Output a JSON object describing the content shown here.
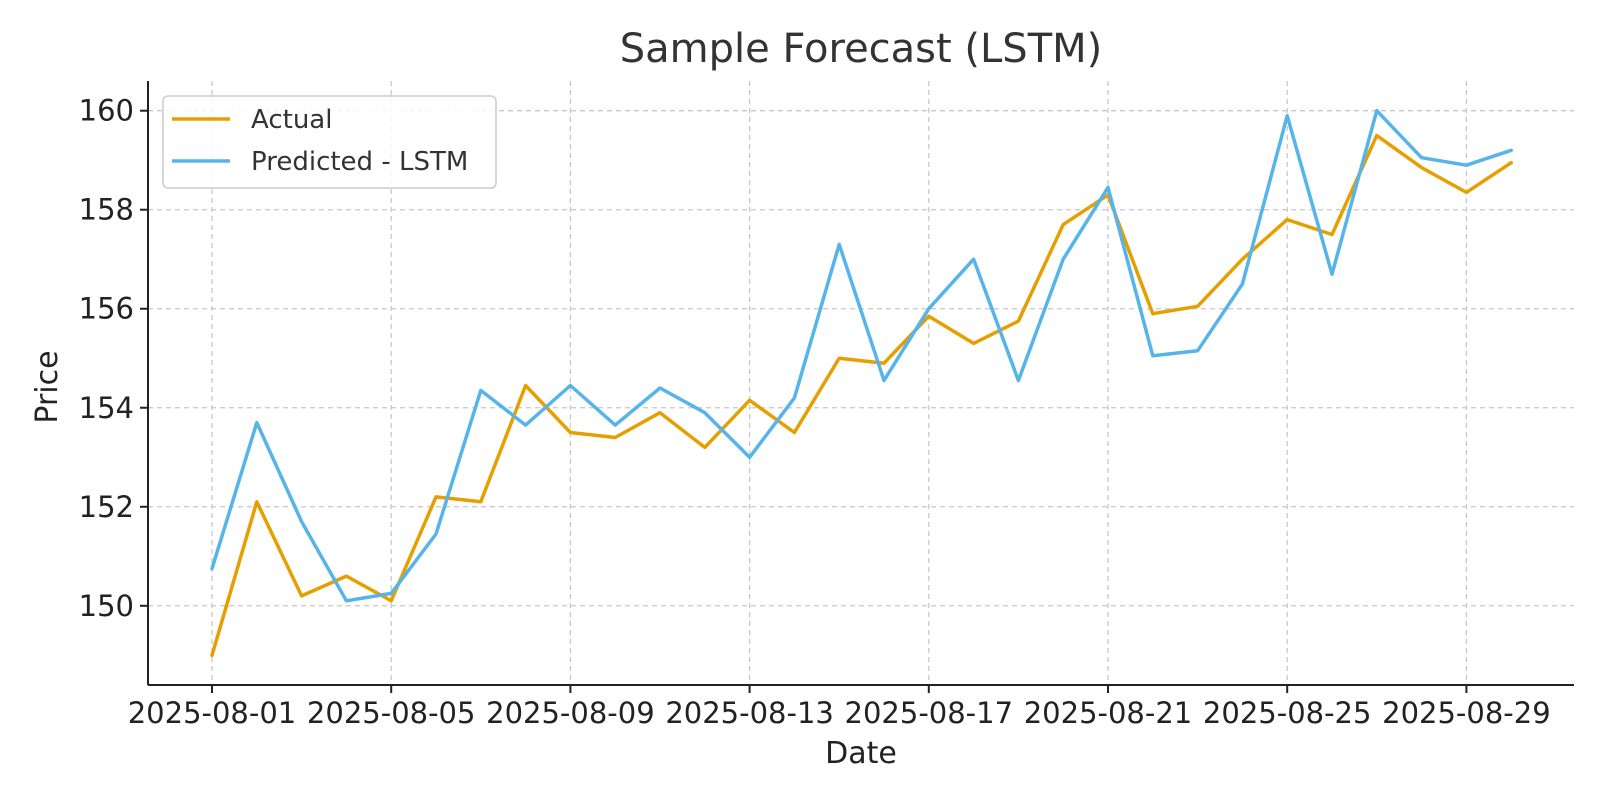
{
  "chart_data": {
    "type": "line",
    "title": "Sample Forecast (LSTM)",
    "xlabel": "Date",
    "ylabel": "Price",
    "x": [
      "2025-08-01",
      "2025-08-02",
      "2025-08-03",
      "2025-08-04",
      "2025-08-05",
      "2025-08-06",
      "2025-08-07",
      "2025-08-08",
      "2025-08-09",
      "2025-08-10",
      "2025-08-11",
      "2025-08-12",
      "2025-08-13",
      "2025-08-14",
      "2025-08-15",
      "2025-08-16",
      "2025-08-17",
      "2025-08-18",
      "2025-08-19",
      "2025-08-20",
      "2025-08-21",
      "2025-08-22",
      "2025-08-23",
      "2025-08-24",
      "2025-08-25",
      "2025-08-26",
      "2025-08-27",
      "2025-08-28",
      "2025-08-29",
      "2025-08-30"
    ],
    "x_ticks": [
      "2025-08-01",
      "2025-08-05",
      "2025-08-09",
      "2025-08-13",
      "2025-08-17",
      "2025-08-21",
      "2025-08-25",
      "2025-08-29"
    ],
    "y_ticks": [
      150,
      152,
      154,
      156,
      158,
      160
    ],
    "ylim": [
      148.4,
      160.6
    ],
    "grid": true,
    "legend": "top-left",
    "series": [
      {
        "name": "Actual",
        "color": "#E69F00",
        "values": [
          149.0,
          152.1,
          150.2,
          150.6,
          150.1,
          152.2,
          152.1,
          154.45,
          153.5,
          153.4,
          153.9,
          153.2,
          154.15,
          153.5,
          155.0,
          154.9,
          155.85,
          155.3,
          155.75,
          157.7,
          158.3,
          155.9,
          156.05,
          157.0,
          157.8,
          157.5,
          159.5,
          158.85,
          158.35,
          158.95
        ]
      },
      {
        "name": "Predicted - LSTM",
        "color": "#56B4E9",
        "values": [
          150.75,
          153.7,
          151.7,
          150.1,
          150.25,
          151.45,
          154.35,
          153.65,
          154.45,
          153.65,
          154.4,
          153.9,
          153.0,
          154.2,
          157.3,
          154.55,
          156.0,
          157.0,
          154.55,
          157.0,
          158.45,
          155.05,
          155.15,
          156.5,
          159.9,
          156.7,
          160.0,
          159.05,
          158.9,
          159.2
        ]
      }
    ]
  }
}
